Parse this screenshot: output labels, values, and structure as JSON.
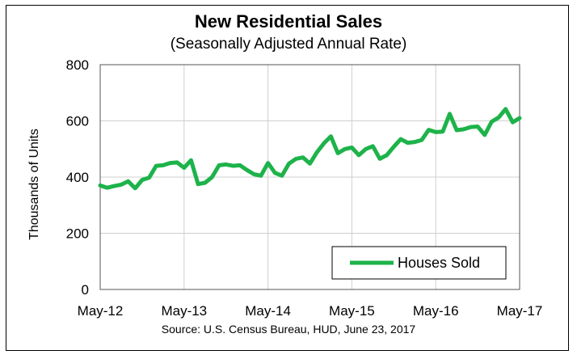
{
  "chart_data": {
    "type": "line",
    "title": "New Residential Sales",
    "subtitle": "(Seasonally Adjusted Annual Rate)",
    "ylabel": "Thousands of Units",
    "xlabel": "",
    "source": "Source:  U.S. Census Bureau, HUD, June 23, 2017",
    "ylim": [
      0,
      800
    ],
    "yticks": [
      "0",
      "200",
      "400",
      "600",
      "800"
    ],
    "xticks": [
      "May-12",
      "May-13",
      "May-14",
      "May-15",
      "May-16",
      "May-17"
    ],
    "grid": true,
    "legend_position": "bottom-right",
    "series": [
      {
        "name": "Houses Sold",
        "color": "#1db34a",
        "x": [
          "2012-05",
          "2012-06",
          "2012-07",
          "2012-08",
          "2012-09",
          "2012-10",
          "2012-11",
          "2012-12",
          "2013-01",
          "2013-02",
          "2013-03",
          "2013-04",
          "2013-05",
          "2013-06",
          "2013-07",
          "2013-08",
          "2013-09",
          "2013-10",
          "2013-11",
          "2013-12",
          "2014-01",
          "2014-02",
          "2014-03",
          "2014-04",
          "2014-05",
          "2014-06",
          "2014-07",
          "2014-08",
          "2014-09",
          "2014-10",
          "2014-11",
          "2014-12",
          "2015-01",
          "2015-02",
          "2015-03",
          "2015-04",
          "2015-05",
          "2015-06",
          "2015-07",
          "2015-08",
          "2015-09",
          "2015-10",
          "2015-11",
          "2015-12",
          "2016-01",
          "2016-02",
          "2016-03",
          "2016-04",
          "2016-05",
          "2016-06",
          "2016-07",
          "2016-08",
          "2016-09",
          "2016-10",
          "2016-11",
          "2016-12",
          "2017-01",
          "2017-02",
          "2017-03",
          "2017-04",
          "2017-05"
        ],
        "values": [
          370,
          362,
          368,
          373,
          385,
          360,
          390,
          398,
          440,
          442,
          450,
          452,
          433,
          460,
          375,
          380,
          400,
          442,
          445,
          440,
          442,
          425,
          410,
          405,
          450,
          415,
          405,
          448,
          465,
          470,
          448,
          488,
          520,
          545,
          485,
          500,
          505,
          478,
          500,
          510,
          465,
          478,
          508,
          535,
          522,
          525,
          532,
          568,
          560,
          562,
          625,
          567,
          570,
          578,
          580,
          550,
          597,
          612,
          642,
          595,
          610
        ]
      }
    ]
  }
}
